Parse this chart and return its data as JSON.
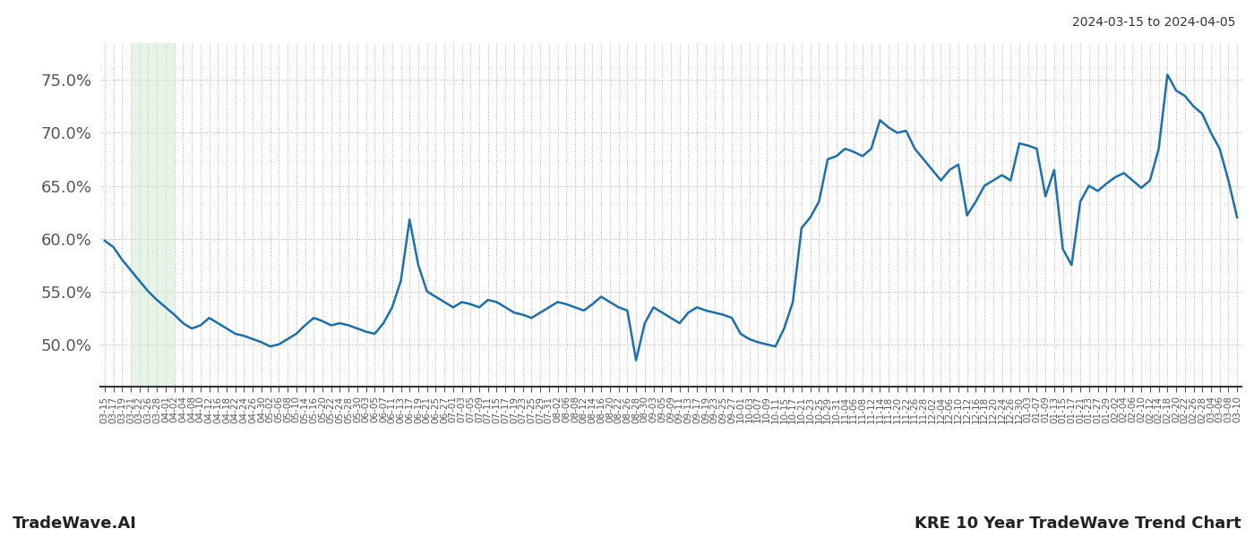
{
  "title_right": "2024-03-15 to 2024-04-05",
  "bottom_left": "TradeWave.AI",
  "bottom_right": "KRE 10 Year TradeWave Trend Chart",
  "line_color": "#1a6faf",
  "line_width": 1.8,
  "shade_color": "#c8e6c9",
  "shade_alpha": 0.45,
  "background_color": "#ffffff",
  "grid_color": "#b0b0b0",
  "grid_linestyle": ":",
  "ylim": [
    46.0,
    78.5
  ],
  "yticks": [
    50.0,
    55.0,
    60.0,
    65.0,
    70.0,
    75.0
  ],
  "ytick_fontsize": 13,
  "xtick_fontsize": 7.5,
  "x_labels": [
    "03-15",
    "03-17",
    "03-19",
    "03-21",
    "03-22",
    "03-26",
    "03-28",
    "04-01",
    "04-02",
    "04-04",
    "04-08",
    "04-10",
    "04-12",
    "04-16",
    "04-18",
    "04-22",
    "04-24",
    "04-26",
    "04-30",
    "05-02",
    "05-06",
    "05-08",
    "05-10",
    "05-14",
    "05-16",
    "05-20",
    "05-22",
    "05-24",
    "05-28",
    "05-30",
    "06-03",
    "06-05",
    "06-07",
    "06-11",
    "06-13",
    "06-17",
    "06-19",
    "06-21",
    "06-25",
    "06-27",
    "07-01",
    "07-03",
    "07-05",
    "07-09",
    "07-11",
    "07-15",
    "07-17",
    "07-19",
    "07-23",
    "07-25",
    "07-29",
    "07-31",
    "08-02",
    "08-06",
    "08-08",
    "08-12",
    "08-14",
    "08-16",
    "08-20",
    "08-22",
    "08-26",
    "08-28",
    "08-30",
    "09-03",
    "09-05",
    "09-09",
    "09-11",
    "09-13",
    "09-17",
    "09-19",
    "09-23",
    "09-25",
    "09-27",
    "10-01",
    "10-03",
    "10-07",
    "10-09",
    "10-11",
    "10-15",
    "10-17",
    "10-21",
    "10-23",
    "10-25",
    "10-29",
    "10-31",
    "11-04",
    "11-06",
    "11-08",
    "11-12",
    "11-14",
    "11-18",
    "11-20",
    "11-22",
    "11-26",
    "11-28",
    "12-02",
    "12-04",
    "12-06",
    "12-10",
    "12-12",
    "12-16",
    "12-18",
    "12-20",
    "12-24",
    "12-26",
    "12-30",
    "01-03",
    "01-07",
    "01-09",
    "01-13",
    "01-15",
    "01-17",
    "01-21",
    "01-23",
    "01-27",
    "01-29",
    "02-02",
    "02-04",
    "02-06",
    "02-10",
    "02-12",
    "02-14",
    "02-18",
    "02-20",
    "02-22",
    "02-26",
    "02-28",
    "03-04",
    "03-06",
    "03-08",
    "03-10"
  ],
  "shade_x_start_label": "03-21",
  "shade_x_end_label": "04-02",
  "values": [
    59.8,
    59.2,
    58.0,
    57.0,
    56.0,
    55.0,
    54.2,
    53.5,
    52.8,
    52.0,
    51.5,
    51.8,
    52.5,
    52.0,
    51.5,
    51.0,
    50.8,
    50.5,
    50.2,
    49.8,
    50.0,
    50.5,
    51.0,
    51.8,
    52.5,
    52.2,
    51.8,
    52.0,
    51.8,
    51.5,
    51.2,
    51.0,
    52.0,
    53.5,
    56.0,
    61.8,
    57.5,
    55.0,
    54.5,
    54.0,
    53.5,
    54.0,
    53.8,
    53.5,
    54.2,
    54.0,
    53.5,
    53.0,
    52.8,
    52.5,
    53.0,
    53.5,
    54.0,
    53.8,
    53.5,
    53.2,
    53.8,
    54.5,
    54.0,
    53.5,
    53.2,
    48.5,
    52.0,
    53.5,
    53.0,
    52.5,
    52.0,
    53.0,
    53.5,
    53.2,
    53.0,
    52.8,
    52.5,
    51.0,
    50.5,
    50.2,
    50.0,
    49.8,
    51.5,
    54.0,
    61.0,
    62.0,
    63.5,
    67.5,
    67.8,
    68.5,
    68.2,
    67.8,
    68.5,
    71.2,
    70.5,
    70.0,
    70.2,
    68.5,
    67.5,
    66.5,
    65.5,
    66.5,
    67.0,
    62.2,
    63.5,
    65.0,
    65.5,
    66.0,
    65.5,
    69.0,
    68.8,
    68.5,
    64.0,
    66.5,
    59.0,
    57.5,
    63.5,
    65.0,
    64.5,
    65.2,
    65.8,
    66.2,
    65.5,
    64.8,
    65.5,
    68.5,
    75.5,
    74.0,
    73.5,
    72.5,
    71.8,
    70.0,
    68.5,
    65.5,
    62.0
  ]
}
